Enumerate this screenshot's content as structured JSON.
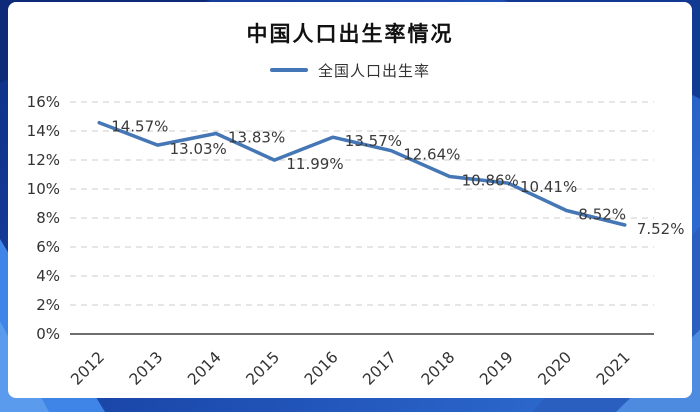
{
  "header": {
    "title": "中国人口出生率情况",
    "legend_label": "全国人口出生率"
  },
  "colors": {
    "line": "#4576b5",
    "grid": "#cccccc",
    "axis": "#3f3f3f",
    "tick_text": "#333333",
    "data_label_text": "#3a3a3a",
    "card_bg": "#ffffff",
    "background_blue": "#1c4aad"
  },
  "chart_data": {
    "type": "line",
    "title": "中国人口出生率情况",
    "legend": [
      "全国人口出生率"
    ],
    "legend_position": "top",
    "categories": [
      "2012",
      "2013",
      "2014",
      "2015",
      "2016",
      "2017",
      "2018",
      "2019",
      "2020",
      "2021"
    ],
    "series": [
      {
        "name": "全国人口出生率",
        "values": [
          14.57,
          13.03,
          13.83,
          11.99,
          13.57,
          12.64,
          10.86,
          10.41,
          8.52,
          7.52
        ]
      }
    ],
    "data_labels": [
      "14.57%",
      "13.03%",
      "13.83%",
      "11.99%",
      "13.57%",
      "12.64%",
      "10.86%",
      "10.41%",
      "8.52%",
      "7.52%"
    ],
    "xlabel": "",
    "ylabel": "",
    "ylim": [
      0,
      16
    ],
    "ytick_step": 2,
    "ytick_labels": [
      "0%",
      "2%",
      "4%",
      "6%",
      "8%",
      "10%",
      "12%",
      "14%",
      "16%"
    ],
    "grid": "dashed-horizontal",
    "line_color": "#4576b5"
  }
}
